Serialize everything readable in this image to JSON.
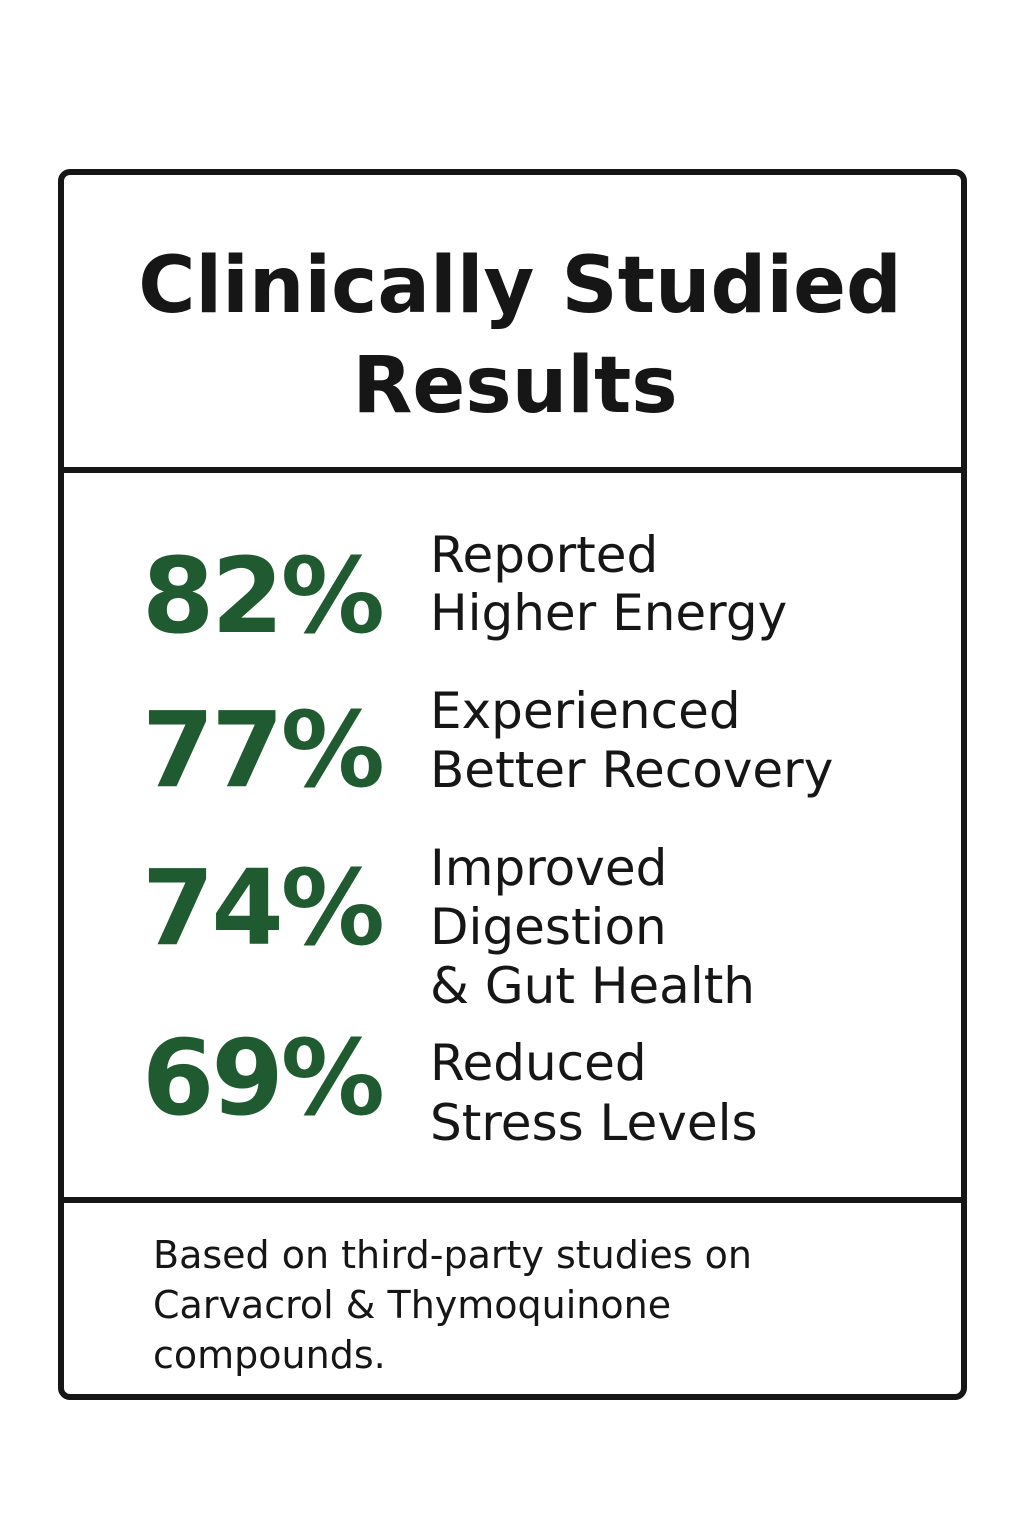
{
  "title": [
    "Clinically Studied",
    "Results"
  ],
  "stats": [
    {
      "value": "82%",
      "label": [
        "Reported",
        "Higher Energy"
      ]
    },
    {
      "value": "77%",
      "label": [
        "Experienced",
        "Better Recovery"
      ]
    },
    {
      "value": "74%",
      "label": [
        "Improved",
        "Digestion",
        "& Gut Health"
      ]
    },
    {
      "value": "69%",
      "label": [
        "Reduced",
        "Stress Levels"
      ]
    }
  ],
  "footnote": [
    "Based on third-party studies on",
    "Carvacrol & Thymoquinone",
    "compounds."
  ]
}
